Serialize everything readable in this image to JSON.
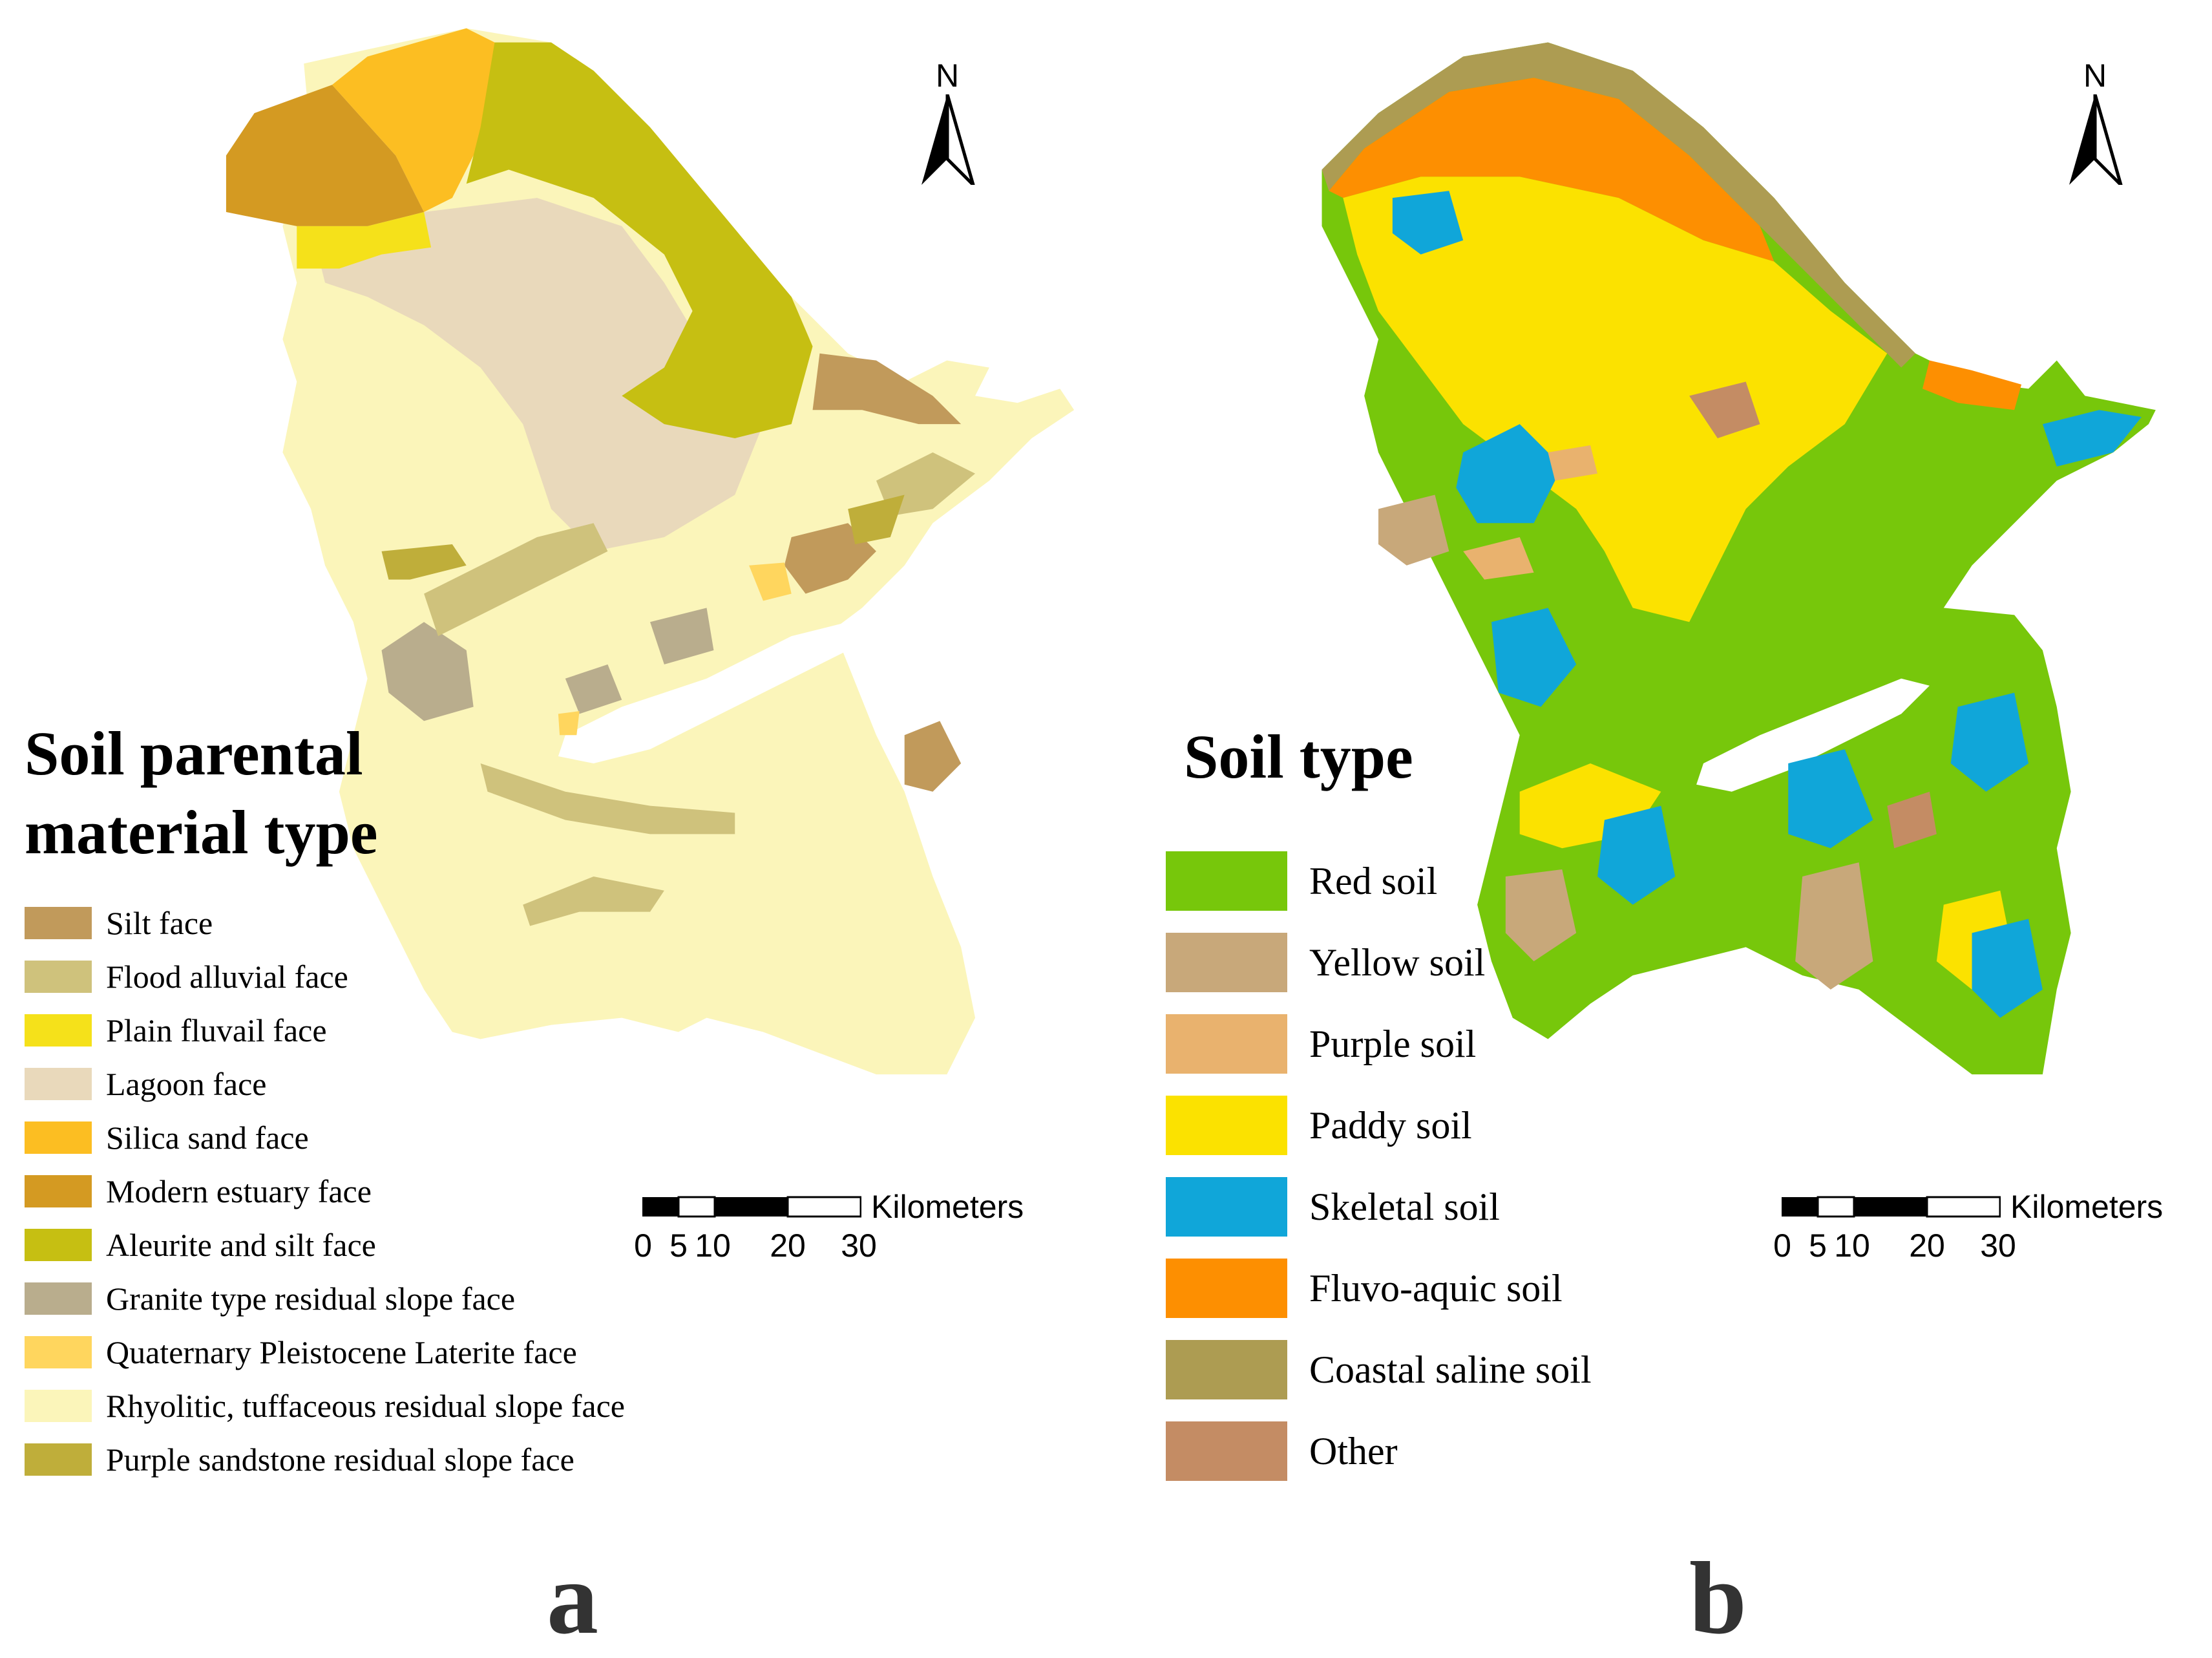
{
  "panel_a": {
    "letter": "a",
    "legend_title_line1": "Soil parental",
    "legend_title_line2": "material type",
    "north_label": "N",
    "scale_unit": "Kilometers",
    "scale_ticks": [
      "0",
      "5",
      "10",
      "20",
      "30"
    ],
    "legend": [
      {
        "label": "Silt face",
        "color": "#C19A5B"
      },
      {
        "label": "Flood alluvial face",
        "color": "#CFC27C"
      },
      {
        "label": "Plain fluvail face",
        "color": "#F5E11A"
      },
      {
        "label": "Lagoon face",
        "color": "#E9D9BB"
      },
      {
        "label": "Silica sand face",
        "color": "#FCBE22"
      },
      {
        "label": "Modern estuary face",
        "color": "#D49A22"
      },
      {
        "label": "Aleurite and silt face",
        "color": "#C6BF12"
      },
      {
        "label": "Granite type residual slope face",
        "color": "#B9AD8D"
      },
      {
        "label": "Quaternary Pleistocene Laterite face",
        "color": "#FFD65E"
      },
      {
        "label": "Rhyolitic, tuffaceous residual slope face",
        "color": "#FBF5BA"
      },
      {
        "label": "Purple sandstone residual slope face",
        "color": "#BFAE3A"
      }
    ]
  },
  "panel_b": {
    "letter": "b",
    "legend_title": "Soil type",
    "north_label": "N",
    "scale_unit": "Kilometers",
    "scale_ticks": [
      "0",
      "5",
      "10",
      "20",
      "30"
    ],
    "legend": [
      {
        "label": "Red soil",
        "color": "#77C70B"
      },
      {
        "label": "Yellow soil",
        "color": "#C8A87A"
      },
      {
        "label": "Purple soil",
        "color": "#E9B26E"
      },
      {
        "label": "Paddy soil",
        "color": "#FBE200"
      },
      {
        "label": "Skeletal soil",
        "color": "#10A6D9"
      },
      {
        "label": "Fluvo-aquic soil",
        "color": "#FD8F01"
      },
      {
        "label": "Coastal saline soil",
        "color": "#AD9C52"
      },
      {
        "label": "Other",
        "color": "#C48C64"
      }
    ]
  }
}
